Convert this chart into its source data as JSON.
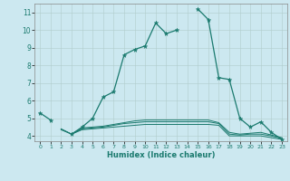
{
  "title": "",
  "xlabel": "Humidex (Indice chaleur)",
  "background_color": "#cce8f0",
  "grid_color": "#b0cccc",
  "line_color": "#1a7a6e",
  "xlim": [
    -0.5,
    23.5
  ],
  "ylim": [
    3.7,
    11.5
  ],
  "yticks": [
    4,
    5,
    6,
    7,
    8,
    9,
    10,
    11
  ],
  "xticks": [
    0,
    1,
    2,
    3,
    4,
    5,
    6,
    7,
    8,
    9,
    10,
    11,
    12,
    13,
    14,
    15,
    16,
    17,
    18,
    19,
    20,
    21,
    22,
    23
  ],
  "series_main": {
    "x": [
      0,
      1,
      3,
      4,
      5,
      6,
      7,
      8,
      9,
      10,
      11,
      12,
      13,
      15,
      16,
      17,
      18,
      19,
      20,
      21,
      22,
      23
    ],
    "y": [
      5.3,
      4.9,
      4.1,
      4.5,
      5.0,
      6.2,
      6.5,
      8.6,
      8.9,
      9.1,
      10.4,
      9.8,
      10.0,
      11.2,
      10.6,
      7.3,
      7.2,
      5.0,
      4.5,
      4.8,
      4.2,
      3.8
    ],
    "gaps_after": [
      1,
      13
    ]
  },
  "series_flat": [
    {
      "x": [
        2,
        3,
        4,
        5,
        6,
        7,
        8,
        9,
        10,
        11,
        12,
        13,
        14,
        15,
        16,
        17,
        18,
        19,
        20,
        21,
        22,
        23
      ],
      "y": [
        4.35,
        4.1,
        4.35,
        4.4,
        4.45,
        4.5,
        4.55,
        4.6,
        4.65,
        4.65,
        4.65,
        4.65,
        4.65,
        4.65,
        4.65,
        4.6,
        4.0,
        4.0,
        4.0,
        4.0,
        3.9,
        3.8
      ]
    },
    {
      "x": [
        2,
        3,
        4,
        5,
        6,
        7,
        8,
        9,
        10,
        11,
        12,
        13,
        14,
        15,
        16,
        17,
        18,
        19,
        20,
        21,
        22,
        23
      ],
      "y": [
        4.38,
        4.1,
        4.4,
        4.45,
        4.5,
        4.6,
        4.7,
        4.75,
        4.8,
        4.8,
        4.8,
        4.8,
        4.8,
        4.8,
        4.8,
        4.7,
        4.1,
        4.05,
        4.1,
        4.1,
        4.0,
        3.85
      ]
    },
    {
      "x": [
        2,
        3,
        4,
        5,
        6,
        7,
        8,
        9,
        10,
        11,
        12,
        13,
        14,
        15,
        16,
        17,
        18,
        19,
        20,
        21,
        22,
        23
      ],
      "y": [
        4.4,
        4.1,
        4.45,
        4.5,
        4.55,
        4.65,
        4.75,
        4.85,
        4.9,
        4.9,
        4.9,
        4.9,
        4.9,
        4.9,
        4.9,
        4.75,
        4.2,
        4.1,
        4.15,
        4.2,
        4.05,
        3.9
      ]
    }
  ]
}
